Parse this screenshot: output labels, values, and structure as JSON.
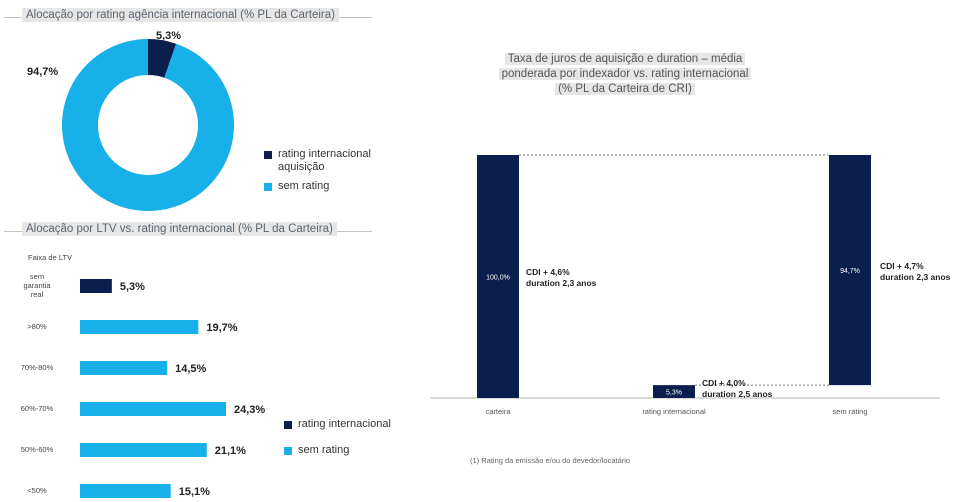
{
  "donut": {
    "title": "Alocação por rating agência internacional (% PL da Carteira)",
    "legend": [
      "rating internacional aquisição",
      "sem rating"
    ],
    "colors": {
      "rated": "#0b1f4f",
      "unrated": "#17b0e8"
    }
  },
  "ltv": {
    "title": "Alocação por LTV vs. rating internacional (% PL da Carteira)",
    "axis_header": "Faixa de LTV",
    "legend": [
      "rating internacional",
      "sem rating"
    ]
  },
  "waterfall": {
    "title_lines": [
      "Taxa de juros de aquisição e duration – média",
      "ponderada por indexador vs. rating internacional",
      "(% PL da Carteira de CRI)"
    ],
    "note": "(1) Rating da emissão e/ou do devedor/locatário",
    "annotations": {
      "carteira": [
        "CDI + 4,6%",
        "duration 2,3 anos"
      ],
      "rating": [
        "CDI + 4,0%",
        "duration 2,5 anos"
      ],
      "sem_rating": [
        "CDI + 4,7%",
        "duration 2,3 anos"
      ]
    }
  },
  "chart_data": [
    {
      "type": "pie",
      "title": "Alocação por rating agência internacional (% PL da Carteira)",
      "labels": [
        "rating internacional aquisição",
        "sem rating"
      ],
      "values": [
        5.3,
        94.7
      ],
      "value_labels": [
        "5,3%",
        "94,7%"
      ],
      "donut": true,
      "colors": [
        "#0b1f4f",
        "#17b0e8"
      ],
      "legend_position": "right"
    },
    {
      "type": "bar",
      "orientation": "horizontal",
      "title": "Alocação por LTV vs. rating internacional (% PL da Carteira)",
      "categories": [
        "sem garantia real",
        ">80%",
        "70%-80%",
        "60%-70%",
        "50%-60%",
        "<50%"
      ],
      "series": [
        {
          "name": "rating internacional",
          "values": [
            5.3,
            null,
            null,
            null,
            null,
            null
          ]
        },
        {
          "name": "sem rating",
          "values": [
            null,
            19.7,
            14.5,
            24.3,
            21.1,
            15.1
          ]
        }
      ],
      "value_labels": [
        "5,3%",
        "19,7%",
        "14,5%",
        "24,3%",
        "21,1%",
        "15,1%"
      ],
      "colors": [
        "#0b1f4f",
        "#17b0e8"
      ],
      "xlim": [
        0,
        27
      ],
      "legend_position": "right"
    },
    {
      "type": "bar",
      "subtype": "waterfall",
      "title": "Taxa de juros de aquisição e duration – média ponderada por indexador vs. rating internacional (% PL da Carteira de CRI)",
      "categories": [
        "carteira",
        "rating internacional",
        "sem rating"
      ],
      "values": [
        100.0,
        5.3,
        94.7
      ],
      "value_labels": [
        "100,0%",
        "5,3%",
        "94,7%"
      ],
      "ylim": [
        0,
        100
      ],
      "color": "#0b1f4f"
    }
  ]
}
